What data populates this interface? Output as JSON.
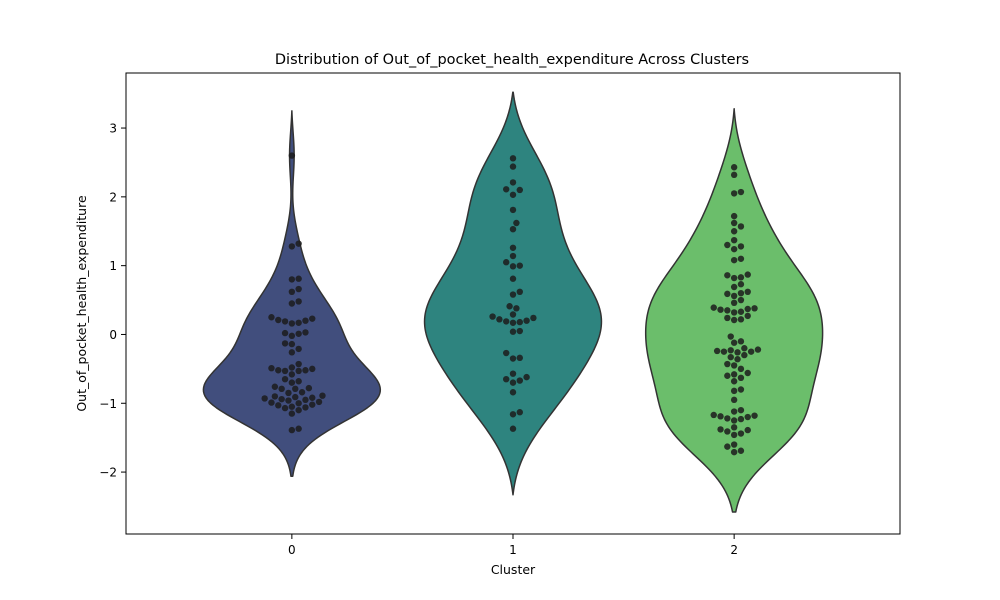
{
  "chart_data": {
    "type": "violin",
    "title": "Distribution of Out_of_pocket_health_expenditure Across Clusters",
    "xlabel": "Cluster",
    "ylabel": "Out_of_pocket_health_expenditure",
    "categories": [
      "0",
      "1",
      "2"
    ],
    "ylim": [
      -2.9,
      3.8
    ],
    "yticks": [
      -2,
      -1,
      0,
      1,
      2,
      3
    ],
    "ytick_labels": [
      "−2",
      "−1",
      "0",
      "1",
      "2",
      "3"
    ],
    "grid": false,
    "legend": "none",
    "colors": [
      "#414e7d",
      "#2e847f",
      "#6bbe6b"
    ],
    "point_color": "#1c1c1c",
    "series": [
      {
        "category": "0",
        "range": [
          -2.06,
          3.25
        ],
        "values": [
          2.6,
          1.32,
          1.28,
          0.81,
          0.8,
          0.66,
          0.62,
          0.48,
          0.45,
          0.25,
          0.23,
          0.21,
          0.2,
          0.19,
          0.17,
          0.16,
          0.03,
          0.02,
          0.01,
          -0.02,
          -0.13,
          -0.14,
          -0.21,
          -0.26,
          -0.43,
          -0.48,
          -0.49,
          -0.5,
          -0.52,
          -0.52,
          -0.53,
          -0.53,
          -0.58,
          -0.65,
          -0.68,
          -0.7,
          -0.76,
          -0.78,
          -0.79,
          -0.79,
          -0.84,
          -0.85,
          -0.89,
          -0.9,
          -0.91,
          -0.92,
          -0.93,
          -0.94,
          -0.95,
          -0.96,
          -0.98,
          -0.99,
          -1.0,
          -1.02,
          -1.03,
          -1.05,
          -1.06,
          -1.07,
          -1.1,
          -1.15,
          -1.37,
          -1.39
        ]
      },
      {
        "category": "1",
        "range": [
          -2.33,
          3.52
        ],
        "values": [
          2.56,
          2.44,
          2.21,
          2.11,
          2.1,
          2.03,
          1.81,
          1.62,
          1.53,
          1.26,
          1.14,
          1.05,
          1.0,
          0.99,
          0.81,
          0.62,
          0.58,
          0.41,
          0.38,
          0.29,
          0.26,
          0.24,
          0.22,
          0.2,
          0.19,
          0.18,
          0.17,
          0.05,
          0.04,
          -0.27,
          -0.34,
          -0.35,
          -0.57,
          -0.62,
          -0.65,
          -0.67,
          -0.7,
          -0.84,
          -1.13,
          -1.16,
          -1.37
        ]
      },
      {
        "category": "2",
        "range": [
          -2.58,
          3.28
        ],
        "values": [
          2.43,
          2.32,
          2.07,
          2.05,
          1.72,
          1.62,
          1.57,
          1.5,
          1.37,
          1.3,
          1.28,
          1.24,
          1.1,
          1.08,
          0.87,
          0.86,
          0.83,
          0.82,
          0.73,
          0.69,
          0.62,
          0.6,
          0.59,
          0.56,
          0.5,
          0.46,
          0.39,
          0.38,
          0.37,
          0.36,
          0.35,
          0.33,
          0.32,
          0.27,
          0.24,
          0.22,
          0.21,
          -0.03,
          -0.1,
          -0.12,
          -0.2,
          -0.22,
          -0.23,
          -0.24,
          -0.25,
          -0.25,
          -0.26,
          -0.3,
          -0.33,
          -0.36,
          -0.43,
          -0.45,
          -0.5,
          -0.56,
          -0.58,
          -0.6,
          -0.63,
          -0.68,
          -0.8,
          -0.82,
          -0.95,
          -1.1,
          -1.12,
          -1.17,
          -1.18,
          -1.19,
          -1.2,
          -1.22,
          -1.23,
          -1.25,
          -1.35,
          -1.38,
          -1.39,
          -1.41,
          -1.44,
          -1.46,
          -1.6,
          -1.63,
          -1.69,
          -1.71
        ]
      }
    ]
  }
}
